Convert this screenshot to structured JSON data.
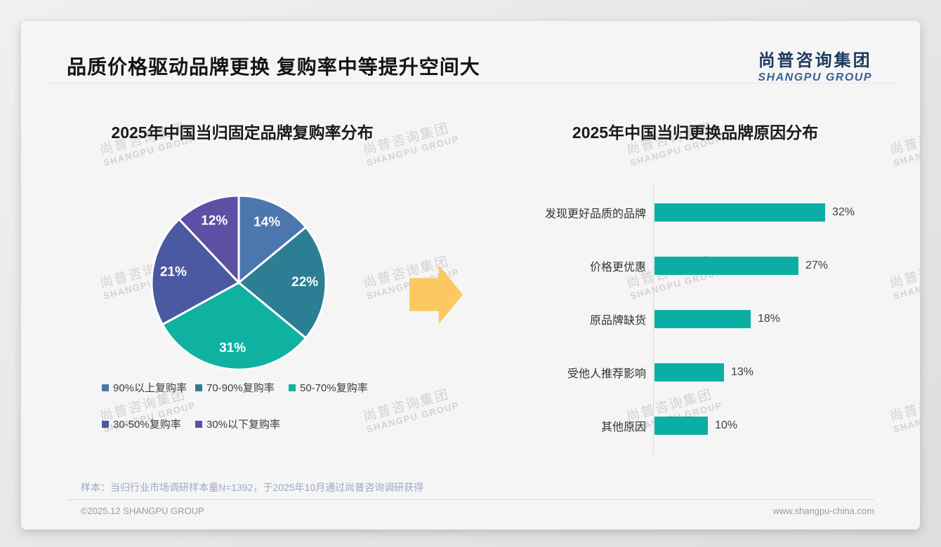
{
  "page": {
    "title": "品质价格驱动品牌更换 复购率中等提升空间大",
    "logo": {
      "cn": "尚普咨询集团",
      "en": "SHANGPU GROUP"
    },
    "watermark": {
      "line1": "尚普咨询集团",
      "line2": "SHANGPU GROUP"
    },
    "arrow_color": "#FBC95F",
    "footer": {
      "sample_note": "样本：当归行业市场调研样本量N=1392，于2025年10月通过尚普咨询调研获得",
      "copyright": "©2025.12 SHANGPU GROUP",
      "website": "www.shangpu-china.com"
    }
  },
  "chart_data": [
    {
      "type": "pie",
      "title": "2025年中国当归固定品牌复购率分布",
      "labels": [
        "90%以上复购率",
        "70-90%复购率",
        "50-70%复购率",
        "30-50%复购率",
        "30%以下复购率"
      ],
      "values": [
        14,
        22,
        31,
        21,
        12
      ],
      "value_labels": [
        "14%",
        "22%",
        "31%",
        "21%",
        "12%"
      ],
      "colors": [
        "#4B76AE",
        "#2B7E94",
        "#0FB2A1",
        "#4B58A2",
        "#5C4FA4"
      ],
      "start_angle_deg": 0,
      "direction": "clockwise",
      "legend_position": "bottom"
    },
    {
      "type": "bar",
      "title": "2025年中国当归更换品牌原因分布",
      "orientation": "horizontal",
      "categories": [
        "发现更好品质的品牌",
        "价格更优惠",
        "原品牌缺货",
        "受他人推荐影响",
        "其他原因"
      ],
      "values": [
        32,
        27,
        18,
        13,
        10
      ],
      "value_labels": [
        "32%",
        "27%",
        "18%",
        "13%",
        "10%"
      ],
      "bar_color": "#0BAEA4",
      "xlim": [
        0,
        35
      ],
      "grid": false,
      "legend_position": "none"
    }
  ]
}
